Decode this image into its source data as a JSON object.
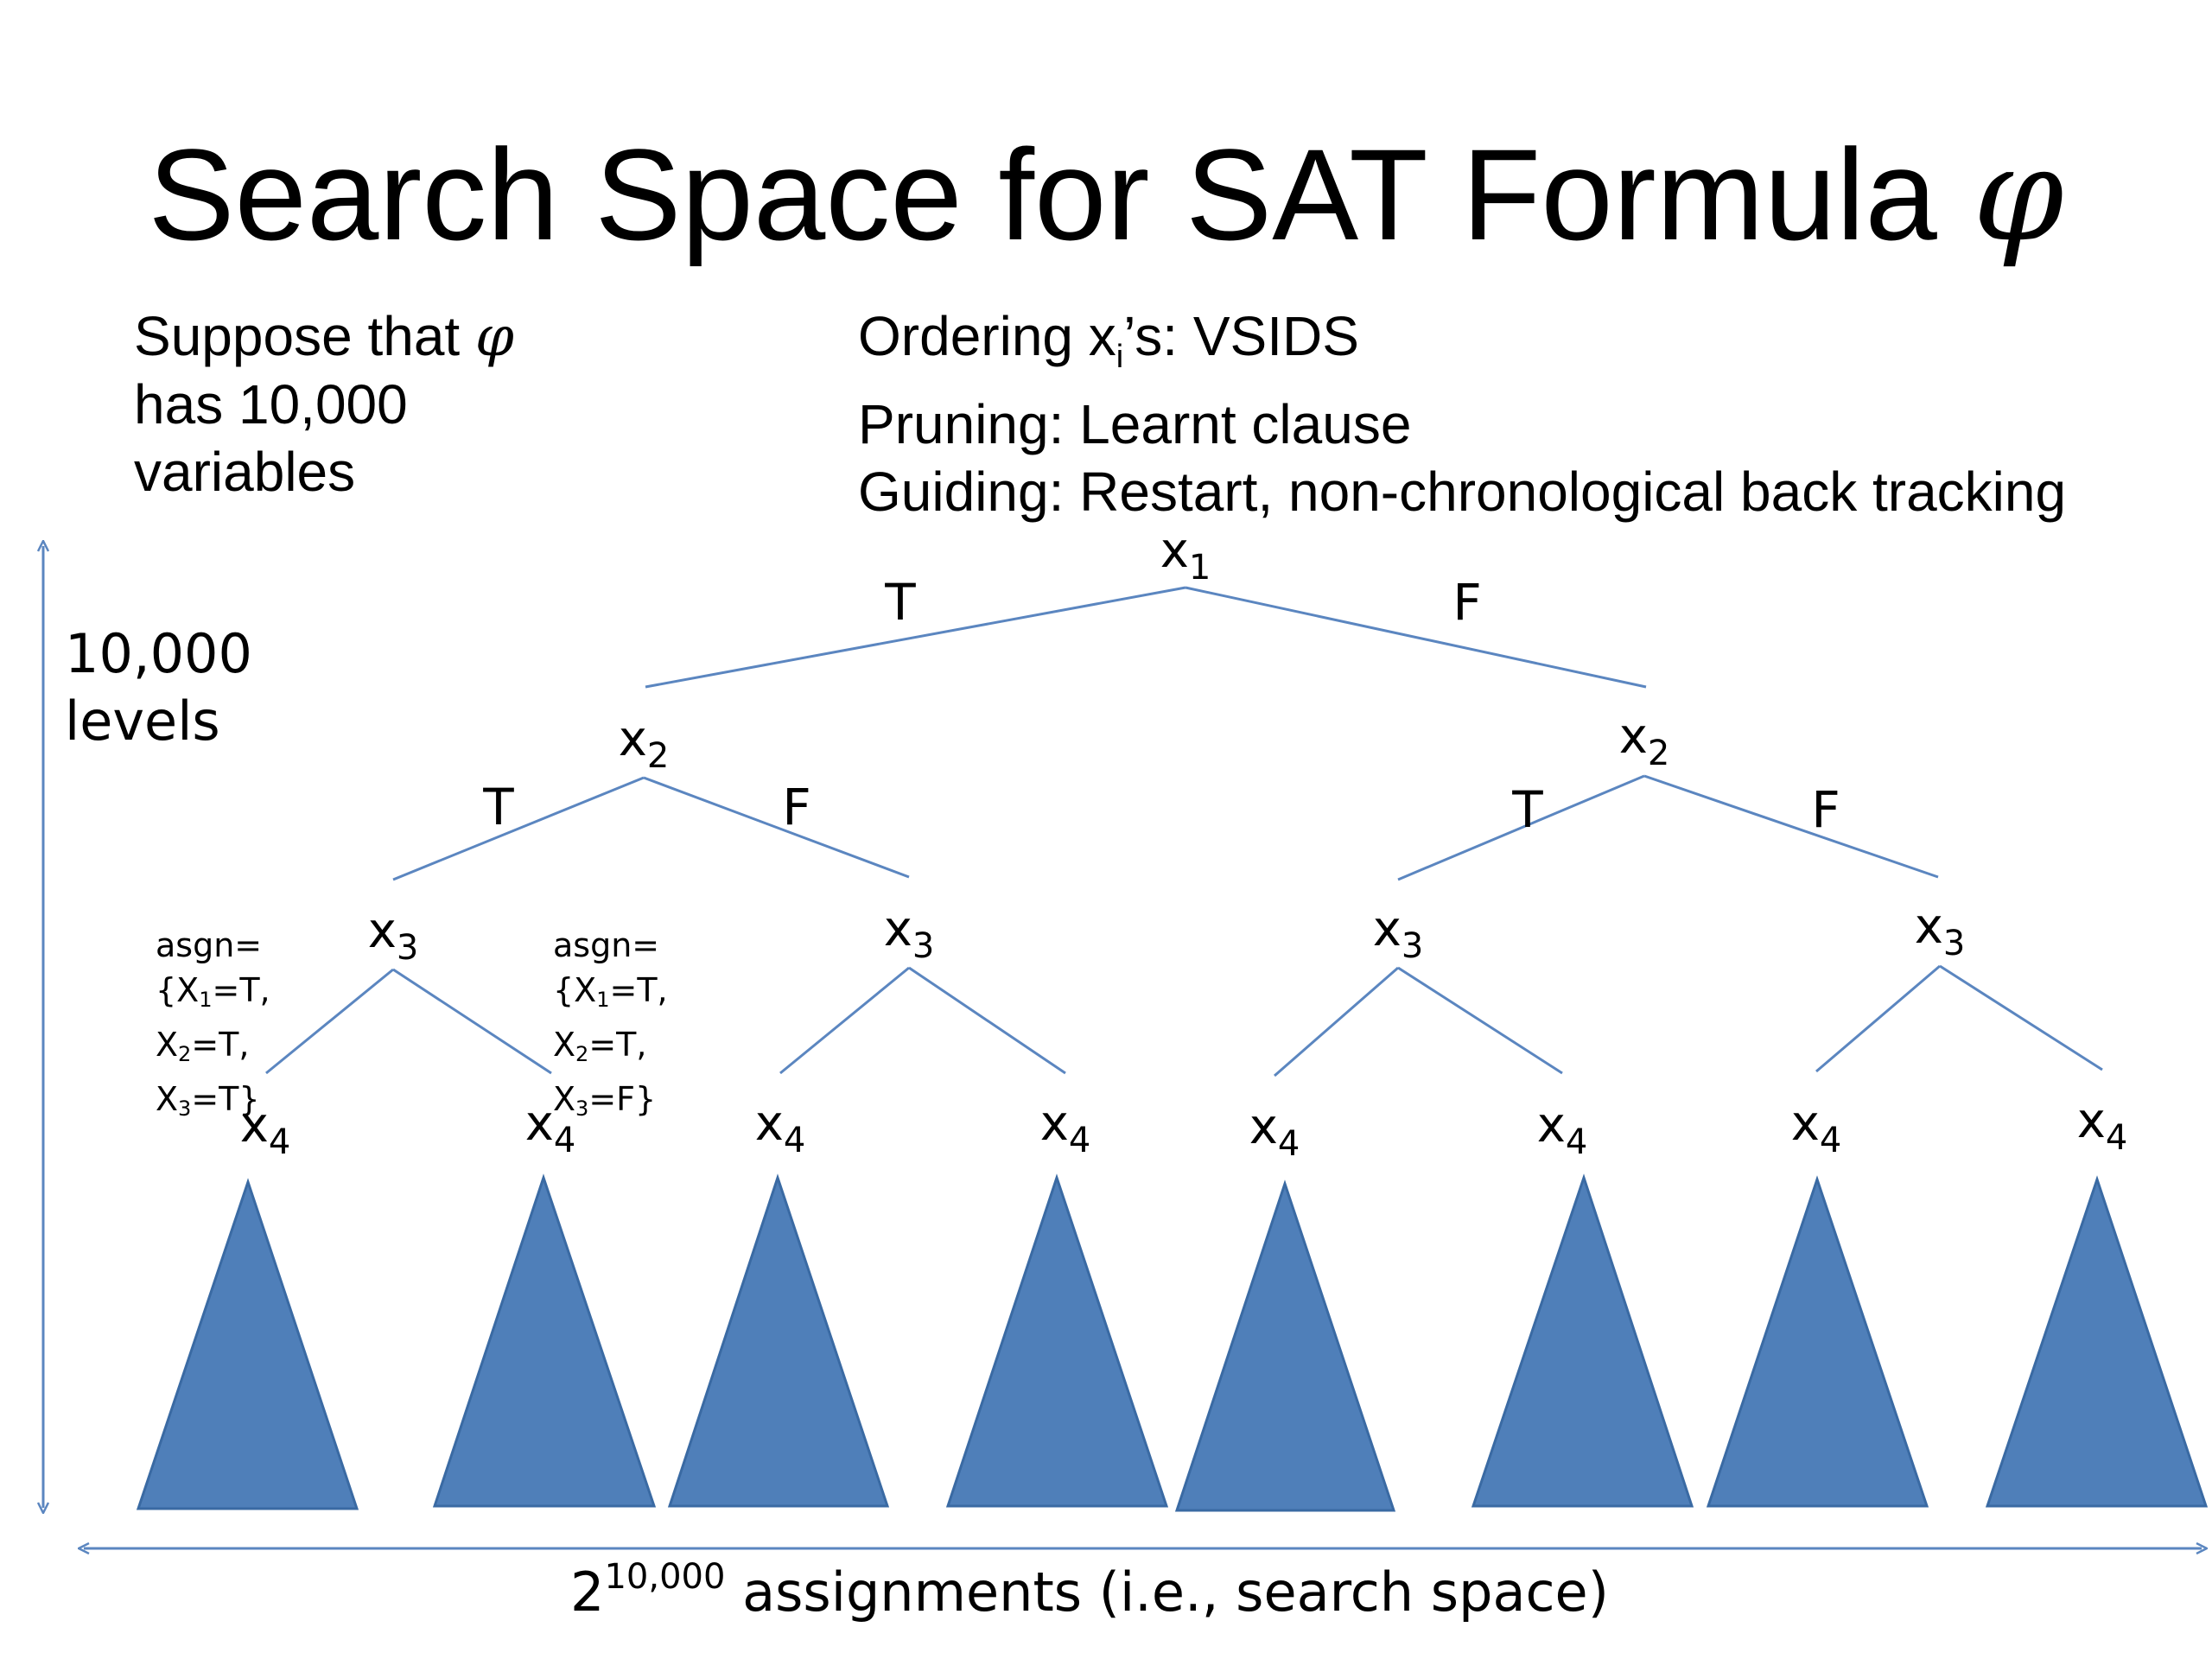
{
  "title": {
    "text": "Search Space for SAT Formula ",
    "symbol": "φ"
  },
  "note_left": {
    "line1_prefix": "Suppose that ",
    "line1_symbol": "φ",
    "line2": "has 10,000",
    "line3": "variables"
  },
  "note_right": {
    "line1_prefix": "Ordering x",
    "line1_sub": "i",
    "line1_suffix": "’s: VSIDS",
    "line2": "Pruning: Learnt clause",
    "line3": "Guiding: Restart, non-chronological back tracking"
  },
  "levels": {
    "line1": "10,000",
    "line2": "levels"
  },
  "search_space": {
    "base": "2",
    "exponent": "10,000",
    "suffix": " assignments (i.e., search space)"
  },
  "tree": {
    "root": {
      "var": "x",
      "sub": "1"
    },
    "level2": [
      {
        "var": "x",
        "sub": "2"
      },
      {
        "var": "x",
        "sub": "2"
      }
    ],
    "level3": [
      {
        "var": "x",
        "sub": "3"
      },
      {
        "var": "x",
        "sub": "3"
      },
      {
        "var": "x",
        "sub": "3"
      },
      {
        "var": "x",
        "sub": "3"
      }
    ],
    "level4": [
      {
        "var": "x",
        "sub": "4"
      },
      {
        "var": "x",
        "sub": "4"
      },
      {
        "var": "x",
        "sub": "4"
      },
      {
        "var": "x",
        "sub": "4"
      },
      {
        "var": "x",
        "sub": "4"
      },
      {
        "var": "x",
        "sub": "4"
      },
      {
        "var": "x",
        "sub": "4"
      },
      {
        "var": "x",
        "sub": "4"
      }
    ],
    "edge_labels": {
      "true": "T",
      "false": "F"
    }
  },
  "assignments": [
    {
      "l1": "asgn=",
      "l2_pre": "{X",
      "l2_sub": "1",
      "l2_post": "=T,",
      "l3_pre": "X",
      "l3_sub": "2",
      "l3_post": "=T,",
      "l4_pre": "X",
      "l4_sub": "3",
      "l4_post": "=T}"
    },
    {
      "l1": "asgn=",
      "l2_pre": "{X",
      "l2_sub": "1",
      "l2_post": "=T,",
      "l3_pre": "X",
      "l3_sub": "2",
      "l3_post": "=T,",
      "l4_pre": "X",
      "l4_sub": "3",
      "l4_post": "=F}"
    }
  ],
  "colors": {
    "line": "#5b86c0",
    "subtree_fill": "#4f7fb9",
    "subtree_stroke": "#3a6aa3"
  }
}
